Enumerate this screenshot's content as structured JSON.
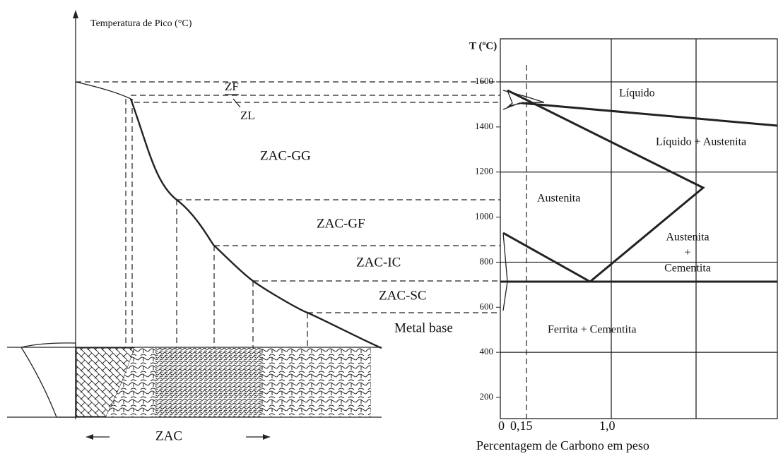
{
  "left_panel": {
    "axis_title": "Temperatura de Pico (°C)",
    "zones": {
      "zf": "ZF",
      "zl": "ZL",
      "gg": "ZAC-GG",
      "gf": "ZAC-GF",
      "ic": "ZAC-IC",
      "sc": "ZAC-SC",
      "base": "Metal base"
    },
    "zac_label": "ZAC"
  },
  "right_panel": {
    "axis_title": "T (ºC)",
    "yticks": [
      200,
      400,
      600,
      800,
      1000,
      1200,
      1400,
      1600
    ],
    "xtick_labels": [
      "0",
      "0,15",
      "1,0"
    ],
    "x_label": "Percentagem de Carbono em peso",
    "regions": {
      "liquid": "Líquido",
      "liquid_austenite": "Líquido + Austenita",
      "austenite": "Austenita",
      "aust_cem_1": "Austenita",
      "aust_cem_2": "+",
      "aust_cem_3": "Cementita",
      "ferrite_cem": "Ferrita + Cementita"
    }
  }
}
